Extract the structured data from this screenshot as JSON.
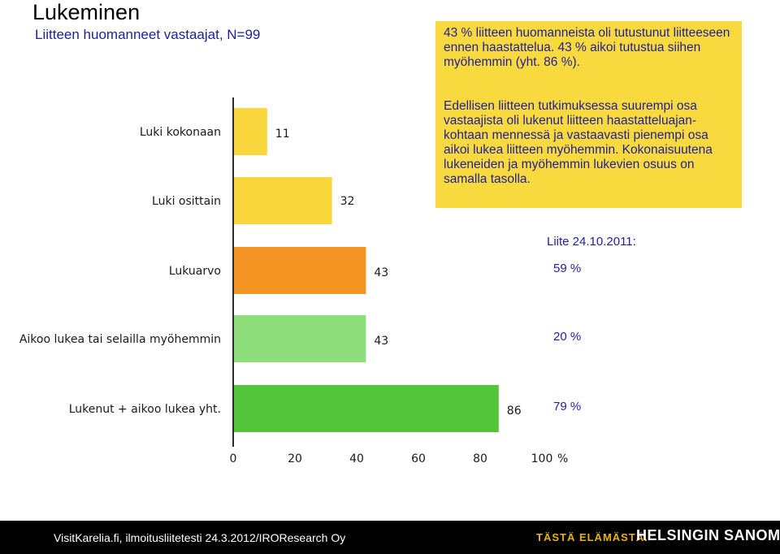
{
  "title": "Lukeminen",
  "subtitle": "Liitteen huomanneet vastaajat, N=99",
  "note1": "43 % liitteen huomanneista oli tutustunut liitteeseen ennen haastattelua. 43 % aikoi tutustua siihen myöhemmin (yht. 86 %).",
  "note2": "Edellisen liitteen tutkimuksessa suurempi osa vastaajista oli lukenut liitteen haastatteluajan-\nkohtaan mennessä ja vastaavasti pienempi osa aikoi lukea liitteen myöhemmin. Kokonaisuutena lukeneiden ja myöhemmin lukevien osuus on samalla tasolla.",
  "comparison": {
    "header": "Liite 24.10.2011:",
    "values": [
      "59 %",
      "20 %",
      "79 %"
    ]
  },
  "chart_data": {
    "type": "bar",
    "orientation": "horizontal",
    "categories": [
      "Luki kokonaan",
      "Luki osittain",
      "Lukuarvo",
      "Aikoo lukea tai selailla myöhemmin",
      "Lukenut + aikoo lukea yht."
    ],
    "values": [
      11,
      32,
      43,
      43,
      86
    ],
    "value_labels": [
      "11",
      "32",
      "43",
      "43",
      "86"
    ],
    "colors": [
      "#f9d63b",
      "#f9d63b",
      "#f39322",
      "#8ede7c",
      "#53c43c"
    ],
    "xlim": [
      0,
      100
    ],
    "xticks": [
      "0",
      "20",
      "40",
      "60",
      "80",
      "100"
    ],
    "xunit": "%",
    "grid": false
  },
  "footer": {
    "source": "VisitKarelia.fi, ilmoitusliitetesti 24.3.2012/IROResearch Oy",
    "slogan": "TÄSTÄ ELÄMÄSTÄ.",
    "logo": "HELSINGIN SANOMAT"
  }
}
